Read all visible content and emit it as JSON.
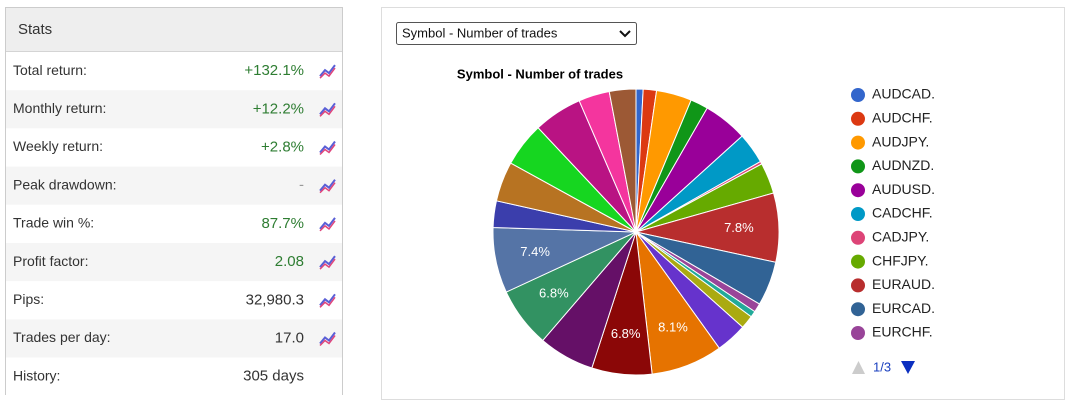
{
  "stats": {
    "title": "Stats",
    "rows": [
      {
        "label": "Total return:",
        "value": "+132.1%",
        "color": "#2e7d32"
      },
      {
        "label": "Monthly return:",
        "value": "+12.2%",
        "color": "#2e7d32"
      },
      {
        "label": "Weekly return:",
        "value": "+2.8%",
        "color": "#2e7d32"
      },
      {
        "label": "Peak drawdown:",
        "value": "-",
        "color": "#999999"
      },
      {
        "label": "Trade win %:",
        "value": "87.7%",
        "color": "#2e7d32"
      },
      {
        "label": "Profit factor:",
        "value": "2.08",
        "color": "#2e7d32"
      },
      {
        "label": "Pips:",
        "value": "32,980.3",
        "color": "#333333"
      },
      {
        "label": "Trades per day:",
        "value": "17.0",
        "color": "#333333"
      },
      {
        "label": "History:",
        "value": "305 days",
        "color": "#333333"
      }
    ]
  },
  "selector": {
    "selected": "Symbol - Number of trades"
  },
  "legend_page": "1/3",
  "chart_data": {
    "type": "pie",
    "title": "Symbol - Number of trades",
    "categories": [
      "AUDCAD.",
      "AUDCHF.",
      "AUDJPY.",
      "AUDNZD.",
      "AUDUSD.",
      "CADCHF.",
      "CADJPY.",
      "CHFJPY.",
      "EURAUD.",
      "EURCAD.",
      "EURCHF.",
      null,
      null,
      null,
      null,
      null,
      null,
      null,
      null,
      null,
      null,
      null,
      null,
      null,
      null
    ],
    "values": [
      0.8,
      1.5,
      4,
      2,
      5,
      3.5,
      0.3,
      3.5,
      7.8,
      5,
      1,
      0.7,
      1.5,
      3.5,
      8.1,
      6.8,
      6.3,
      6.8,
      7.4,
      3,
      4.5,
      5,
      5.5,
      3.5,
      3
    ],
    "value_labels": [
      null,
      null,
      null,
      null,
      null,
      null,
      null,
      null,
      "7.8%",
      null,
      null,
      null,
      null,
      null,
      "8.1%",
      "6.8%",
      null,
      "6.8%",
      "7.4%",
      null,
      null,
      null,
      null,
      null,
      null
    ],
    "colors": [
      "#3366cc",
      "#dc3912",
      "#ff9900",
      "#109618",
      "#990099",
      "#0099c6",
      "#dd4477",
      "#66aa00",
      "#b82e2e",
      "#316395",
      "#994499",
      "#22aa99",
      "#aaaa11",
      "#6633cc",
      "#e67300",
      "#8b0707",
      "#651067",
      "#329262",
      "#5574a6",
      "#3b3eac",
      "#b77322",
      "#16d620",
      "#b91383",
      "#f4359e",
      "#9c5935"
    ]
  }
}
